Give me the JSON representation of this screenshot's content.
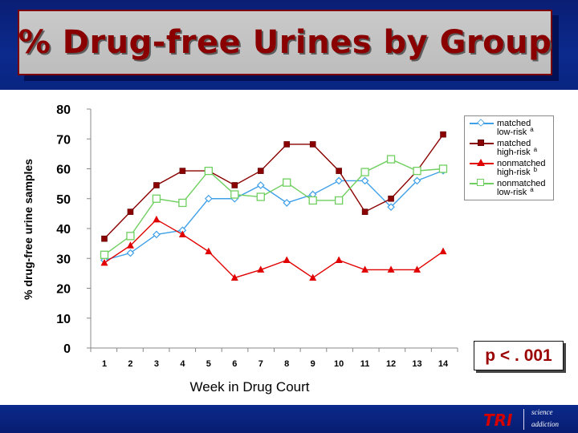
{
  "title": "% Drug-free Urines by Group",
  "footer": {
    "logo_text": "TRI",
    "tagline_line1": "science",
    "tagline_line2": "addiction"
  },
  "p_value_label": "p < . 001",
  "colors": {
    "title_text": "#8a0000",
    "band_blue": "#0b2a8c",
    "matched_low_risk": "#3fa0e8",
    "matched_high_risk": "#8b0000",
    "nonmatched_high_risk": "#e00000",
    "nonmatched_low_risk": "#6fcf5f"
  },
  "chart_data": {
    "type": "line",
    "xlabel": "Week in Drug Court",
    "ylabel": "% drug-free urine samples",
    "ylim": [
      0,
      80
    ],
    "yticks": [
      0,
      10,
      20,
      30,
      40,
      50,
      60,
      70,
      80
    ],
    "x": [
      1,
      2,
      3,
      4,
      5,
      6,
      7,
      8,
      9,
      10,
      11,
      12,
      13,
      14
    ],
    "grid": false,
    "legend_position": "top-right",
    "series": [
      {
        "key": "matched_low_risk",
        "name_line1": "matched",
        "name_line2": "low-risk",
        "note": "a",
        "marker": "diamond",
        "values": [
          29.4,
          31.8,
          38.0,
          39.4,
          50.0,
          50.0,
          54.5,
          48.6,
          51.4,
          56.0,
          56.0,
          47.2,
          56.0,
          59.4
        ]
      },
      {
        "key": "matched_high_risk",
        "name_line1": "matched",
        "name_line2": "high-risk",
        "note": "a",
        "marker": "square",
        "values": [
          36.6,
          45.6,
          54.5,
          59.3,
          59.3,
          54.5,
          59.3,
          68.2,
          68.2,
          59.3,
          45.6,
          50.0,
          59.3,
          71.5
        ]
      },
      {
        "key": "nonmatched_high_risk",
        "name_line1": "nonmatched",
        "name_line2": "high-risk",
        "note": "b",
        "marker": "triangle",
        "values": [
          28.5,
          34.3,
          43.0,
          38.0,
          32.3,
          23.5,
          26.2,
          29.4,
          23.5,
          29.4,
          26.2,
          26.2,
          26.2,
          32.3
        ]
      },
      {
        "key": "nonmatched_low_risk",
        "name_line1": "nonmatched",
        "name_line2": "low-risk",
        "note": "a",
        "marker": "square-open",
        "values": [
          31.2,
          37.5,
          50.0,
          48.6,
          59.3,
          51.4,
          50.6,
          55.4,
          49.4,
          49.4,
          58.9,
          63.2,
          59.3,
          60.0
        ]
      }
    ]
  }
}
